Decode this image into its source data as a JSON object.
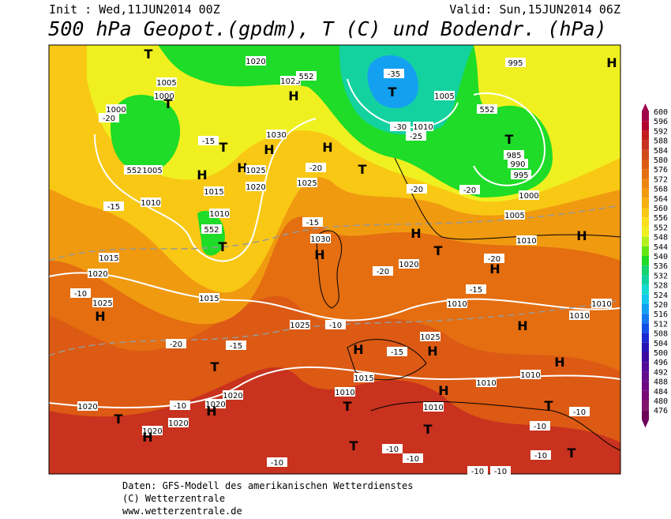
{
  "header": {
    "init": "Init : Wed,11JUN2014 00Z",
    "valid": "Valid: Sun,15JUN2014 06Z",
    "title": "500 hPa Geopot.(gpdm), T (C) und Bodendr. (hPa)"
  },
  "colorbar": {
    "levels": [
      600,
      596,
      592,
      588,
      584,
      580,
      576,
      572,
      568,
      564,
      560,
      556,
      552,
      548,
      544,
      540,
      536,
      532,
      528,
      524,
      520,
      516,
      512,
      508,
      504,
      500,
      496,
      492,
      488,
      484,
      480,
      476
    ],
    "colors": [
      "#a0004a",
      "#b4002e",
      "#c41e1e",
      "#c8321e",
      "#d04a1a",
      "#dc5a14",
      "#e46e10",
      "#ec8410",
      "#f09a10",
      "#f5b010",
      "#f8c814",
      "#fce01c",
      "#f0f020",
      "#b4f01c",
      "#64e614",
      "#1edc28",
      "#14d26e",
      "#14d2a0",
      "#14dcd2",
      "#14c8f0",
      "#14a0f0",
      "#1478f0",
      "#1450e6",
      "#1e28d2",
      "#2814b4",
      "#3c0aa0",
      "#500a96",
      "#640a8c",
      "#6e0a82",
      "#780a78",
      "#82146e",
      "#6e005a"
    ]
  },
  "map_labels": [
    "T",
    "1020",
    "1005",
    "1000",
    "H",
    "1025",
    "552",
    "1000",
    "-20",
    "T",
    "-15",
    "T",
    "H",
    "1030",
    "552",
    "1005",
    "H",
    "H",
    "1025",
    "1015",
    "1020",
    "1025",
    "-20",
    "H",
    "T",
    "T",
    "-35",
    "-30",
    "1010",
    "-25",
    "1005",
    "552",
    "T",
    "985",
    "990",
    "995",
    "1000",
    "995",
    "H",
    "-20",
    "-20",
    "1005",
    "1010",
    "H",
    "1010",
    "-15",
    "1010",
    "552",
    "T",
    "-15",
    "1030",
    "H",
    "H",
    "1020",
    "-20",
    "T",
    "-20",
    "H",
    "1015",
    "1020",
    "-10",
    "1025",
    "H",
    "1015",
    "-20",
    "-15",
    "1025",
    "-10",
    "1010",
    "-15",
    "H",
    "1010",
    "1010",
    "H",
    "-15",
    "1025",
    "H",
    "T",
    "1015",
    "1020",
    "1020",
    "H",
    "-10",
    "1020",
    "T",
    "1010",
    "T",
    "H",
    "1010",
    "1010",
    "H",
    "1010",
    "T",
    "T",
    "-10",
    "-10",
    "1020",
    "H",
    "1020",
    "T",
    "-10",
    "-10",
    "-10",
    "T",
    "-10",
    "-10",
    "-10"
  ],
  "footer": [
    "Daten: GFS-Modell des amerikanischen Wetterdienstes",
    "(C) Wetterzentrale",
    "www.wetterzentrale.de"
  ]
}
